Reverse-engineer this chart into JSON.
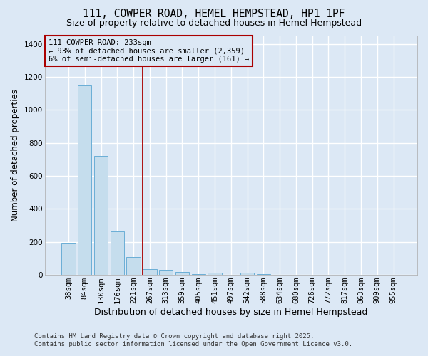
{
  "title": "111, COWPER ROAD, HEMEL HEMPSTEAD, HP1 1PF",
  "subtitle": "Size of property relative to detached houses in Hemel Hempstead",
  "xlabel": "Distribution of detached houses by size in Hemel Hempstead",
  "ylabel": "Number of detached properties",
  "bar_labels": [
    "38sqm",
    "84sqm",
    "130sqm",
    "176sqm",
    "221sqm",
    "267sqm",
    "313sqm",
    "359sqm",
    "405sqm",
    "451sqm",
    "497sqm",
    "542sqm",
    "588sqm",
    "634sqm",
    "680sqm",
    "726sqm",
    "772sqm",
    "817sqm",
    "863sqm",
    "909sqm",
    "955sqm"
  ],
  "bar_values": [
    195,
    1150,
    720,
    265,
    110,
    37,
    30,
    17,
    5,
    13,
    0,
    13,
    5,
    0,
    0,
    0,
    0,
    0,
    0,
    0,
    0
  ],
  "bar_color": "#c5dded",
  "bar_edge_color": "#6aaed6",
  "background_color": "#dce8f5",
  "grid_color": "#ffffff",
  "ylim": [
    0,
    1450
  ],
  "yticks": [
    0,
    200,
    400,
    600,
    800,
    1000,
    1200,
    1400
  ],
  "vline_x": 4.55,
  "vline_color": "#aa0000",
  "annotation_text": "111 COWPER ROAD: 233sqm\n← 93% of detached houses are smaller (2,359)\n6% of semi-detached houses are larger (161) →",
  "footer_text": "Contains HM Land Registry data © Crown copyright and database right 2025.\nContains public sector information licensed under the Open Government Licence v3.0.",
  "title_fontsize": 10.5,
  "subtitle_fontsize": 9,
  "xlabel_fontsize": 9,
  "ylabel_fontsize": 8.5,
  "annotation_fontsize": 7.5,
  "footer_fontsize": 6.5,
  "tick_fontsize": 7.5
}
